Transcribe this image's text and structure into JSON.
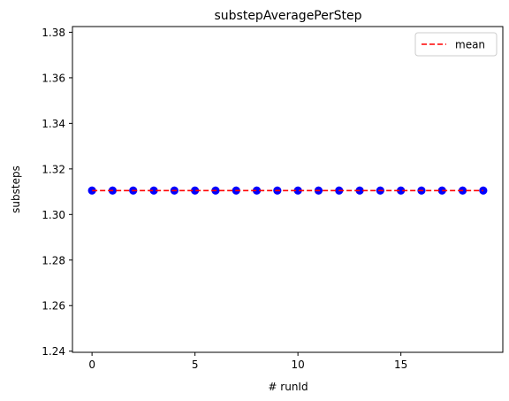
{
  "chart_data": {
    "type": "scatter",
    "title": "substepAveragePerStep",
    "xlabel": "# runId",
    "ylabel": "substeps",
    "xlim": [
      -0.95,
      19.95
    ],
    "ylim": [
      1.2395,
      1.3825
    ],
    "xticks": [
      0,
      5,
      10,
      15
    ],
    "xtick_labels": [
      "0",
      "5",
      "10",
      "15"
    ],
    "yticks": [
      1.24,
      1.26,
      1.28,
      1.3,
      1.32,
      1.34,
      1.36,
      1.38
    ],
    "ytick_labels": [
      "1.24",
      "1.26",
      "1.28",
      "1.30",
      "1.32",
      "1.34",
      "1.36",
      "1.38"
    ],
    "grid": false,
    "legend_position": "top-right",
    "series": [
      {
        "kind": "points",
        "color": "#0000ff",
        "x": [
          0,
          1,
          2,
          3,
          4,
          5,
          6,
          7,
          8,
          9,
          10,
          11,
          12,
          13,
          14,
          15,
          16,
          17,
          18,
          19
        ],
        "y": [
          1.3105,
          1.3105,
          1.3105,
          1.3105,
          1.3105,
          1.3105,
          1.3105,
          1.3105,
          1.3105,
          1.3105,
          1.3105,
          1.3105,
          1.3105,
          1.3105,
          1.3105,
          1.3105,
          1.3105,
          1.3105,
          1.3105,
          1.3105
        ]
      },
      {
        "kind": "line",
        "name": "mean",
        "color": "#ff0000",
        "style": "dashed",
        "x": [
          0,
          19
        ],
        "y": [
          1.3105,
          1.3105
        ]
      }
    ]
  }
}
